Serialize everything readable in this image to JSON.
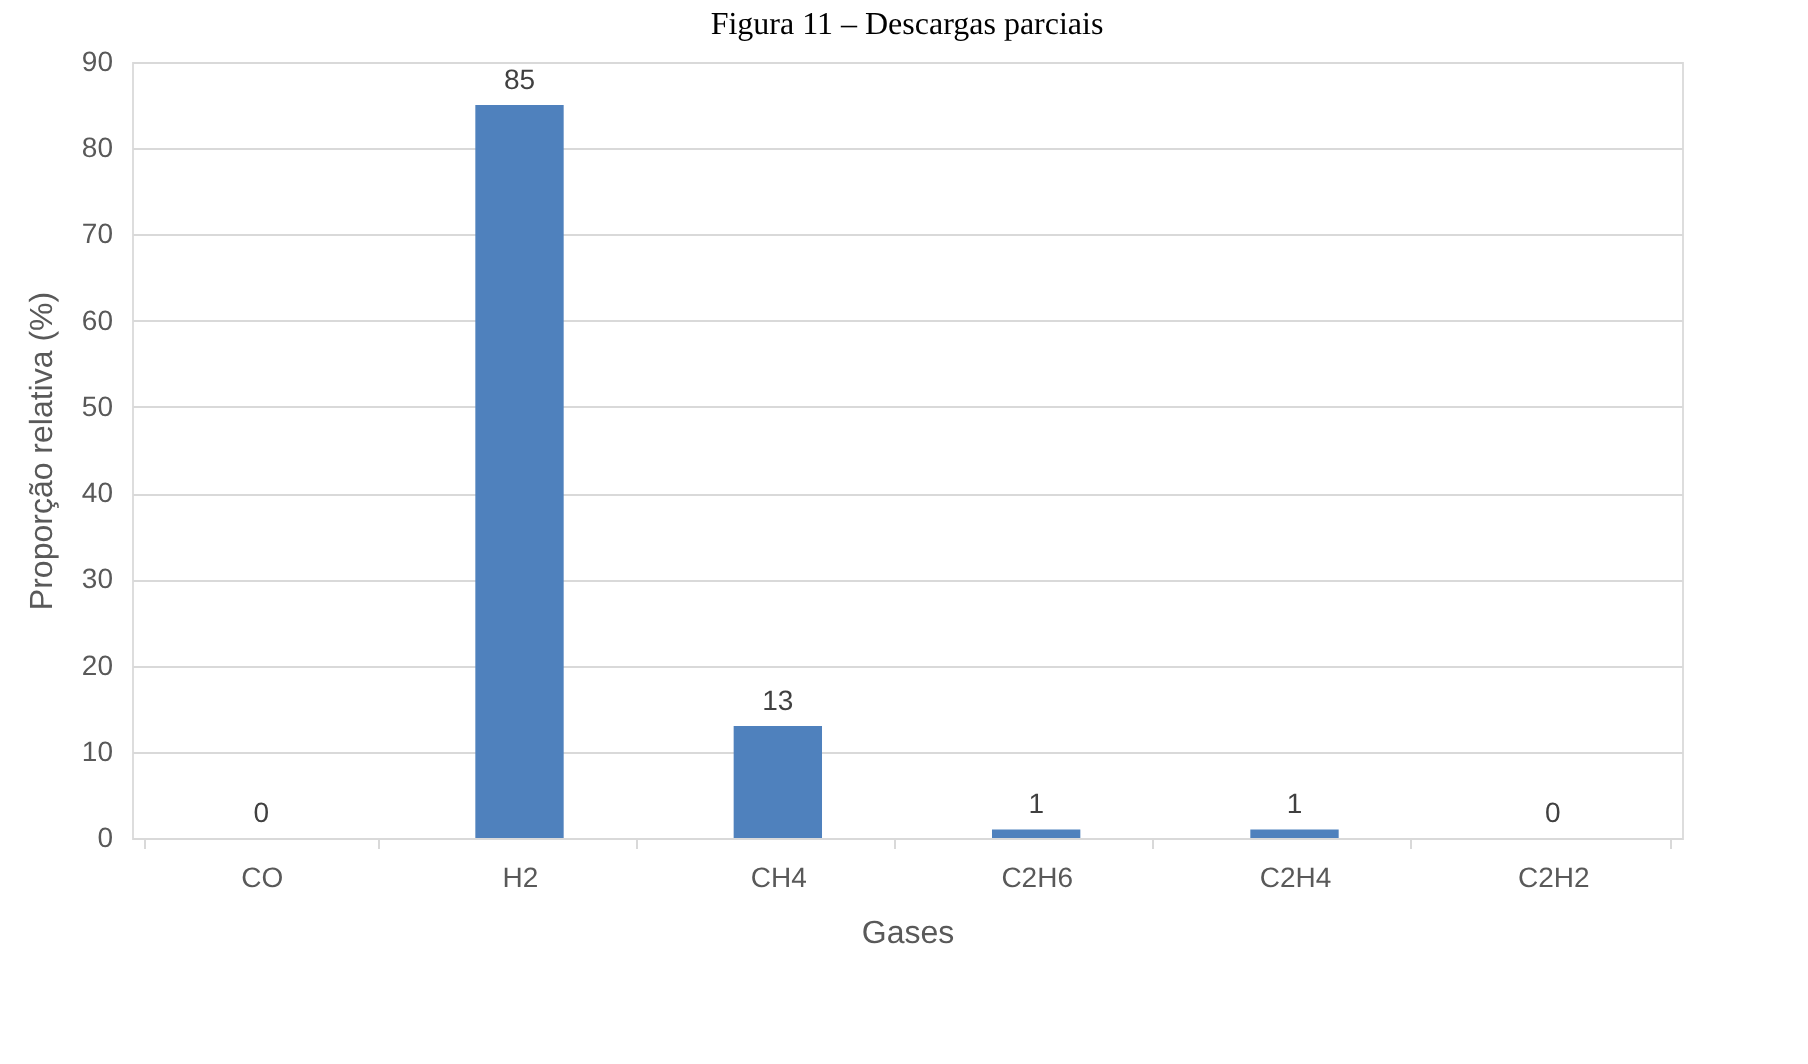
{
  "chart_data": {
    "type": "bar",
    "title": "Figura 11 – Descargas parciais",
    "xlabel": "Gases",
    "ylabel": "Proporção relativa (%)",
    "categories": [
      "CO",
      "H2",
      "CH4",
      "C2H6",
      "C2H4",
      "C2H2"
    ],
    "values": [
      0,
      85,
      13,
      1,
      1,
      0
    ],
    "color": "#4f81bd",
    "ylim": [
      0,
      90
    ],
    "yticks": [
      0,
      10,
      20,
      30,
      40,
      50,
      60,
      70,
      80,
      90
    ],
    "grid": "y",
    "data_labels": true
  }
}
